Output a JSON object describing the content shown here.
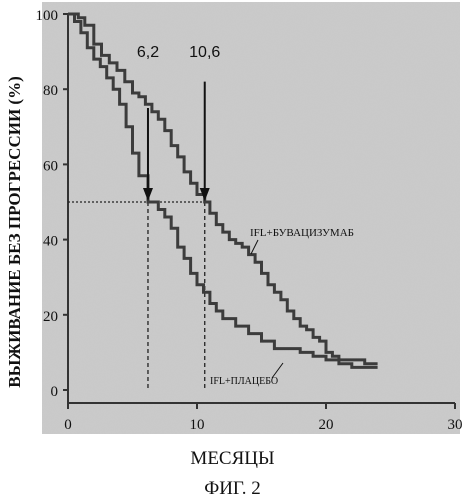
{
  "figure_caption": "ФИГ. 2",
  "chart_data": {
    "type": "line",
    "title": "",
    "xlabel": "МЕСЯЦЫ",
    "ylabel": "ВЫЖИВАНИЕ БЕЗ ПРОГРЕССИИ (%)",
    "xlim": [
      0,
      30
    ],
    "ylim": [
      0,
      100
    ],
    "x_ticks": [
      "0",
      "10",
      "20",
      "30"
    ],
    "y_ticks": [
      "0",
      "20",
      "40",
      "60",
      "80",
      "100"
    ],
    "grid": false,
    "legend": "inline labels",
    "series": [
      {
        "name": "IFL+БУВАЦИЗУМАБ",
        "color": "#3c3c3c",
        "x": [
          0,
          0.8,
          1.3,
          2.0,
          2.6,
          3.2,
          3.8,
          4.4,
          5.0,
          5.5,
          6.0,
          6.5,
          7.0,
          7.5,
          8.0,
          8.5,
          9.0,
          9.5,
          10.0,
          10.6,
          11.0,
          11.5,
          12.0,
          12.5,
          13.0,
          13.5,
          14.0,
          14.5,
          15.0,
          15.5,
          16.0,
          16.5,
          17.0,
          17.5,
          18.0,
          18.5,
          19.0,
          19.5,
          20.0,
          20.5,
          21.0,
          21.5,
          22.0,
          22.5,
          23.0,
          23.5,
          24.0
        ],
        "y": [
          100,
          99,
          97,
          92,
          89,
          87,
          85,
          82,
          79,
          78,
          76,
          74,
          72,
          69,
          65,
          62,
          58,
          55,
          52,
          50,
          47,
          44,
          42,
          40,
          39,
          38,
          36,
          34,
          31,
          28,
          26,
          24,
          21,
          19,
          17,
          16,
          14,
          13,
          10,
          9,
          7,
          7,
          6,
          6,
          6,
          6,
          6
        ]
      },
      {
        "name": "IFL+ПЛАЦЕБО",
        "color": "#3c3c3c",
        "x": [
          0,
          0.5,
          1.0,
          1.5,
          2.0,
          2.5,
          3.0,
          3.5,
          4.0,
          4.5,
          5.0,
          5.5,
          6.2,
          7.0,
          7.5,
          8.0,
          8.5,
          9.0,
          9.5,
          10.0,
          10.5,
          11.0,
          11.5,
          12.0,
          13.0,
          14.0,
          15.0,
          16.0,
          17.0,
          18.0,
          19.0,
          20.0,
          21.0,
          22.0,
          23.0,
          24.0
        ],
        "y": [
          100,
          98,
          95,
          91,
          88,
          86,
          83,
          80,
          76,
          70,
          63,
          57,
          50,
          48,
          46,
          43,
          38,
          35,
          31,
          28,
          26,
          23,
          21,
          19,
          17,
          15,
          13,
          11,
          11,
          10,
          9,
          8,
          8,
          8,
          7,
          7
        ]
      }
    ],
    "annotations": [
      {
        "label": "6,2",
        "x": 6.2,
        "y": 50
      },
      {
        "label": "10,6",
        "x": 10.6,
        "y": 50
      }
    ],
    "series_labels": [
      "IFL+БУВАЦИЗУМАБ",
      "IFL+ПЛАЦЕБО"
    ]
  }
}
